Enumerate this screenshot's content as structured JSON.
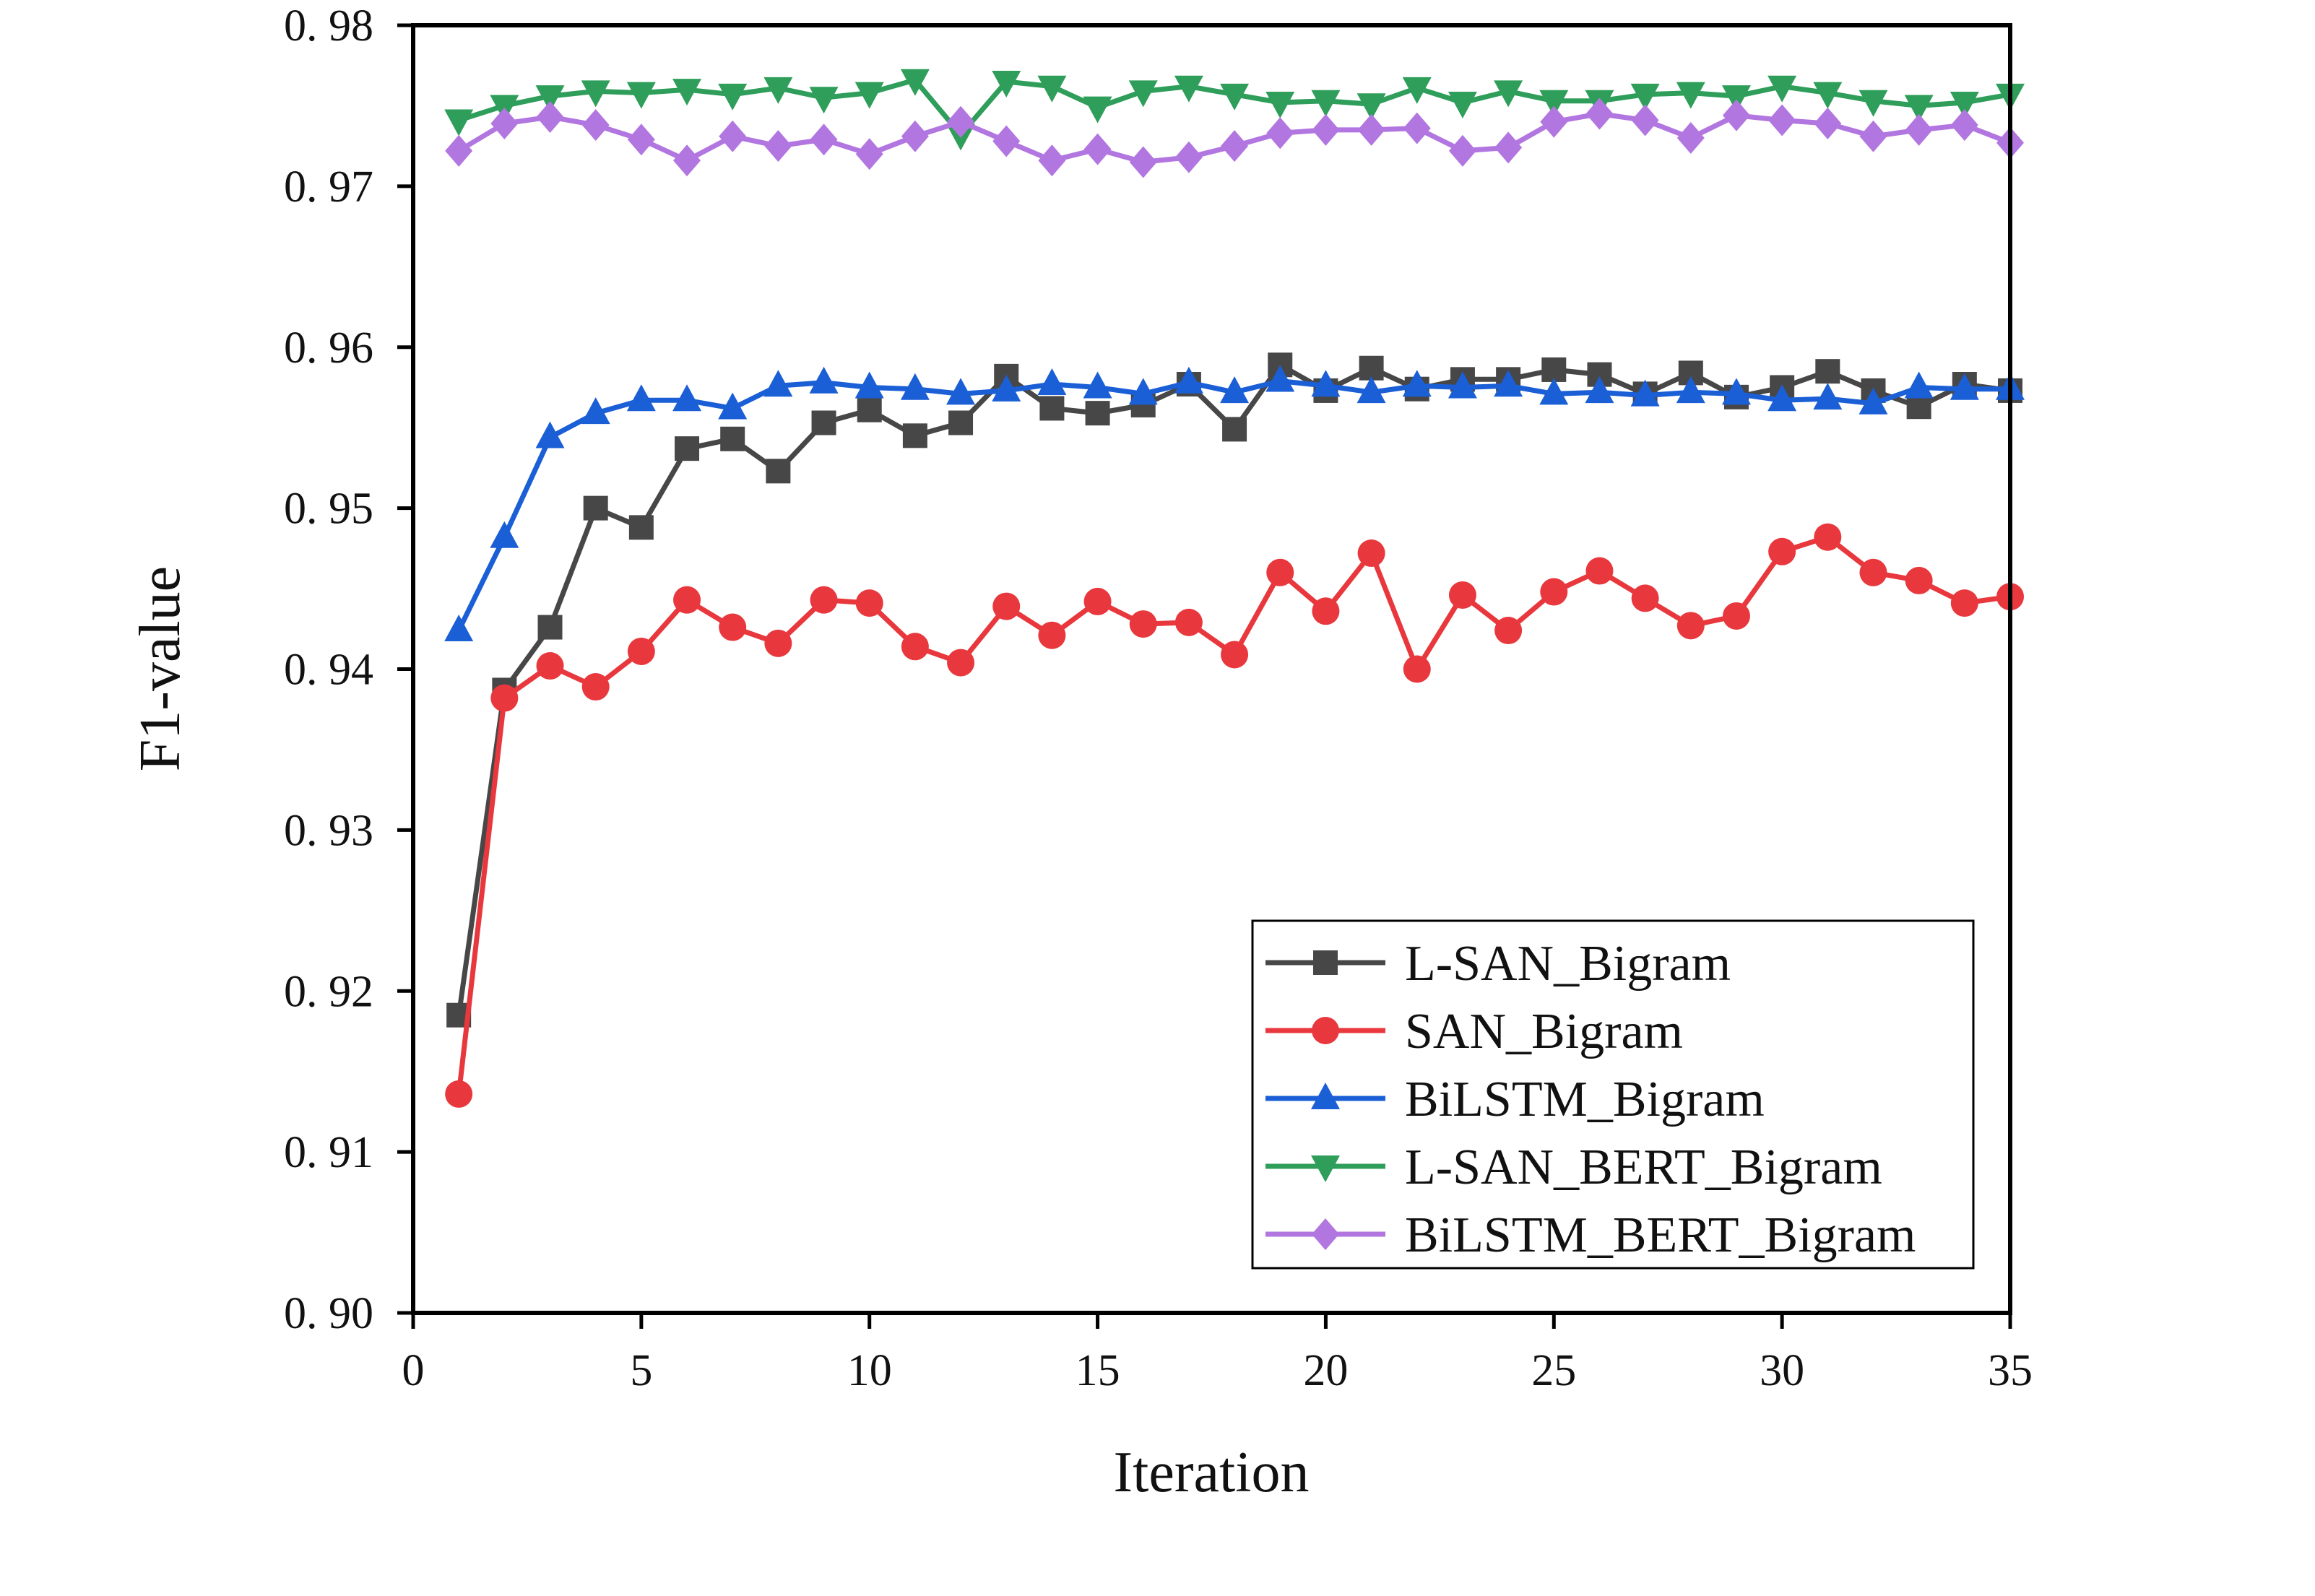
{
  "chart_data": {
    "type": "line",
    "title": "",
    "xlabel": "Iteration",
    "ylabel": "F1-value",
    "xlim": [
      0,
      35
    ],
    "ylim": [
      0.9,
      0.98
    ],
    "xticks": [
      0,
      5,
      10,
      15,
      20,
      25,
      30,
      35
    ],
    "xtick_labels": [
      "0",
      "5",
      "10",
      "15",
      "20",
      "25",
      "30",
      "35"
    ],
    "yticks": [
      0.9,
      0.91,
      0.92,
      0.93,
      0.94,
      0.95,
      0.96,
      0.97,
      0.98
    ],
    "ytick_labels": [
      "0. 90",
      "0. 91",
      "0. 92",
      "0. 93",
      "0. 94",
      "0. 95",
      "0. 96",
      "0. 97",
      "0. 98"
    ],
    "grid": false,
    "legend_position": "lower-right",
    "x": [
      1,
      2,
      3,
      4,
      5,
      6,
      7,
      8,
      9,
      10,
      11,
      12,
      13,
      14,
      15,
      16,
      17,
      18,
      19,
      20,
      21,
      22,
      23,
      24,
      25,
      26,
      27,
      28,
      29,
      30,
      31,
      32,
      33,
      34,
      35
    ],
    "series": [
      {
        "name": "L-SAN_Bigram",
        "color": "#474747",
        "marker": "square",
        "values": [
          0.9185,
          0.9387,
          0.9426,
          0.95,
          0.9488,
          0.9537,
          0.9543,
          0.9523,
          0.9553,
          0.9561,
          0.9545,
          0.9553,
          0.9582,
          0.9562,
          0.9559,
          0.9564,
          0.9577,
          0.9549,
          0.9589,
          0.9573,
          0.9587,
          0.9574,
          0.958,
          0.958,
          0.9586,
          0.9583,
          0.9571,
          0.9584,
          0.9569,
          0.9575,
          0.9585,
          0.9573,
          0.9563,
          0.9577,
          0.9573
        ]
      },
      {
        "name": "SAN_Bigram",
        "color": "#e8383d",
        "marker": "circle",
        "values": [
          0.9136,
          0.9382,
          0.9402,
          0.9389,
          0.9411,
          0.9443,
          0.9426,
          0.9416,
          0.9443,
          0.9441,
          0.9414,
          0.9404,
          0.9439,
          0.9421,
          0.9442,
          0.9428,
          0.9429,
          0.9409,
          0.946,
          0.9436,
          0.9472,
          0.94,
          0.9446,
          0.9424,
          0.9448,
          0.9461,
          0.9444,
          0.9427,
          0.9433,
          0.9473,
          0.9482,
          0.946,
          0.9455,
          0.9441,
          0.9445
        ]
      },
      {
        "name": "BiLSTM_Bigram",
        "color": "#1a5fd6",
        "marker": "triangle-up",
        "values": [
          0.9424,
          0.9482,
          0.9544,
          0.9559,
          0.9567,
          0.9567,
          0.9562,
          0.9576,
          0.9578,
          0.9575,
          0.9574,
          0.9571,
          0.9573,
          0.9577,
          0.9575,
          0.9571,
          0.9578,
          0.9572,
          0.9579,
          0.9576,
          0.9572,
          0.9576,
          0.9575,
          0.9576,
          0.9571,
          0.9572,
          0.957,
          0.9572,
          0.9571,
          0.9567,
          0.9568,
          0.9565,
          0.9575,
          0.9574,
          0.9574
        ]
      },
      {
        "name": "L-SAN_BERT_Bigram",
        "color": "#2e9e5a",
        "marker": "triangle-down",
        "values": [
          0.9741,
          0.975,
          0.9756,
          0.9759,
          0.9758,
          0.976,
          0.9757,
          0.9761,
          0.9755,
          0.9758,
          0.9766,
          0.9732,
          0.9765,
          0.9762,
          0.9749,
          0.9759,
          0.9762,
          0.9757,
          0.9752,
          0.9753,
          0.9751,
          0.9761,
          0.9752,
          0.9759,
          0.9753,
          0.9753,
          0.9757,
          0.9758,
          0.9756,
          0.9762,
          0.9758,
          0.9753,
          0.975,
          0.9752,
          0.9757
        ]
      },
      {
        "name": "BiLSTM_BERT_Bigram",
        "color": "#b276e0",
        "marker": "diamond",
        "values": [
          0.9722,
          0.9739,
          0.9743,
          0.9738,
          0.9729,
          0.9716,
          0.9731,
          0.9725,
          0.9729,
          0.972,
          0.9731,
          0.974,
          0.9728,
          0.9716,
          0.9723,
          0.9715,
          0.9718,
          0.9725,
          0.9733,
          0.9735,
          0.9735,
          0.9736,
          0.9722,
          0.9724,
          0.974,
          0.9745,
          0.9741,
          0.973,
          0.9744,
          0.9741,
          0.9739,
          0.9731,
          0.9735,
          0.9738,
          0.9727
        ]
      }
    ]
  }
}
